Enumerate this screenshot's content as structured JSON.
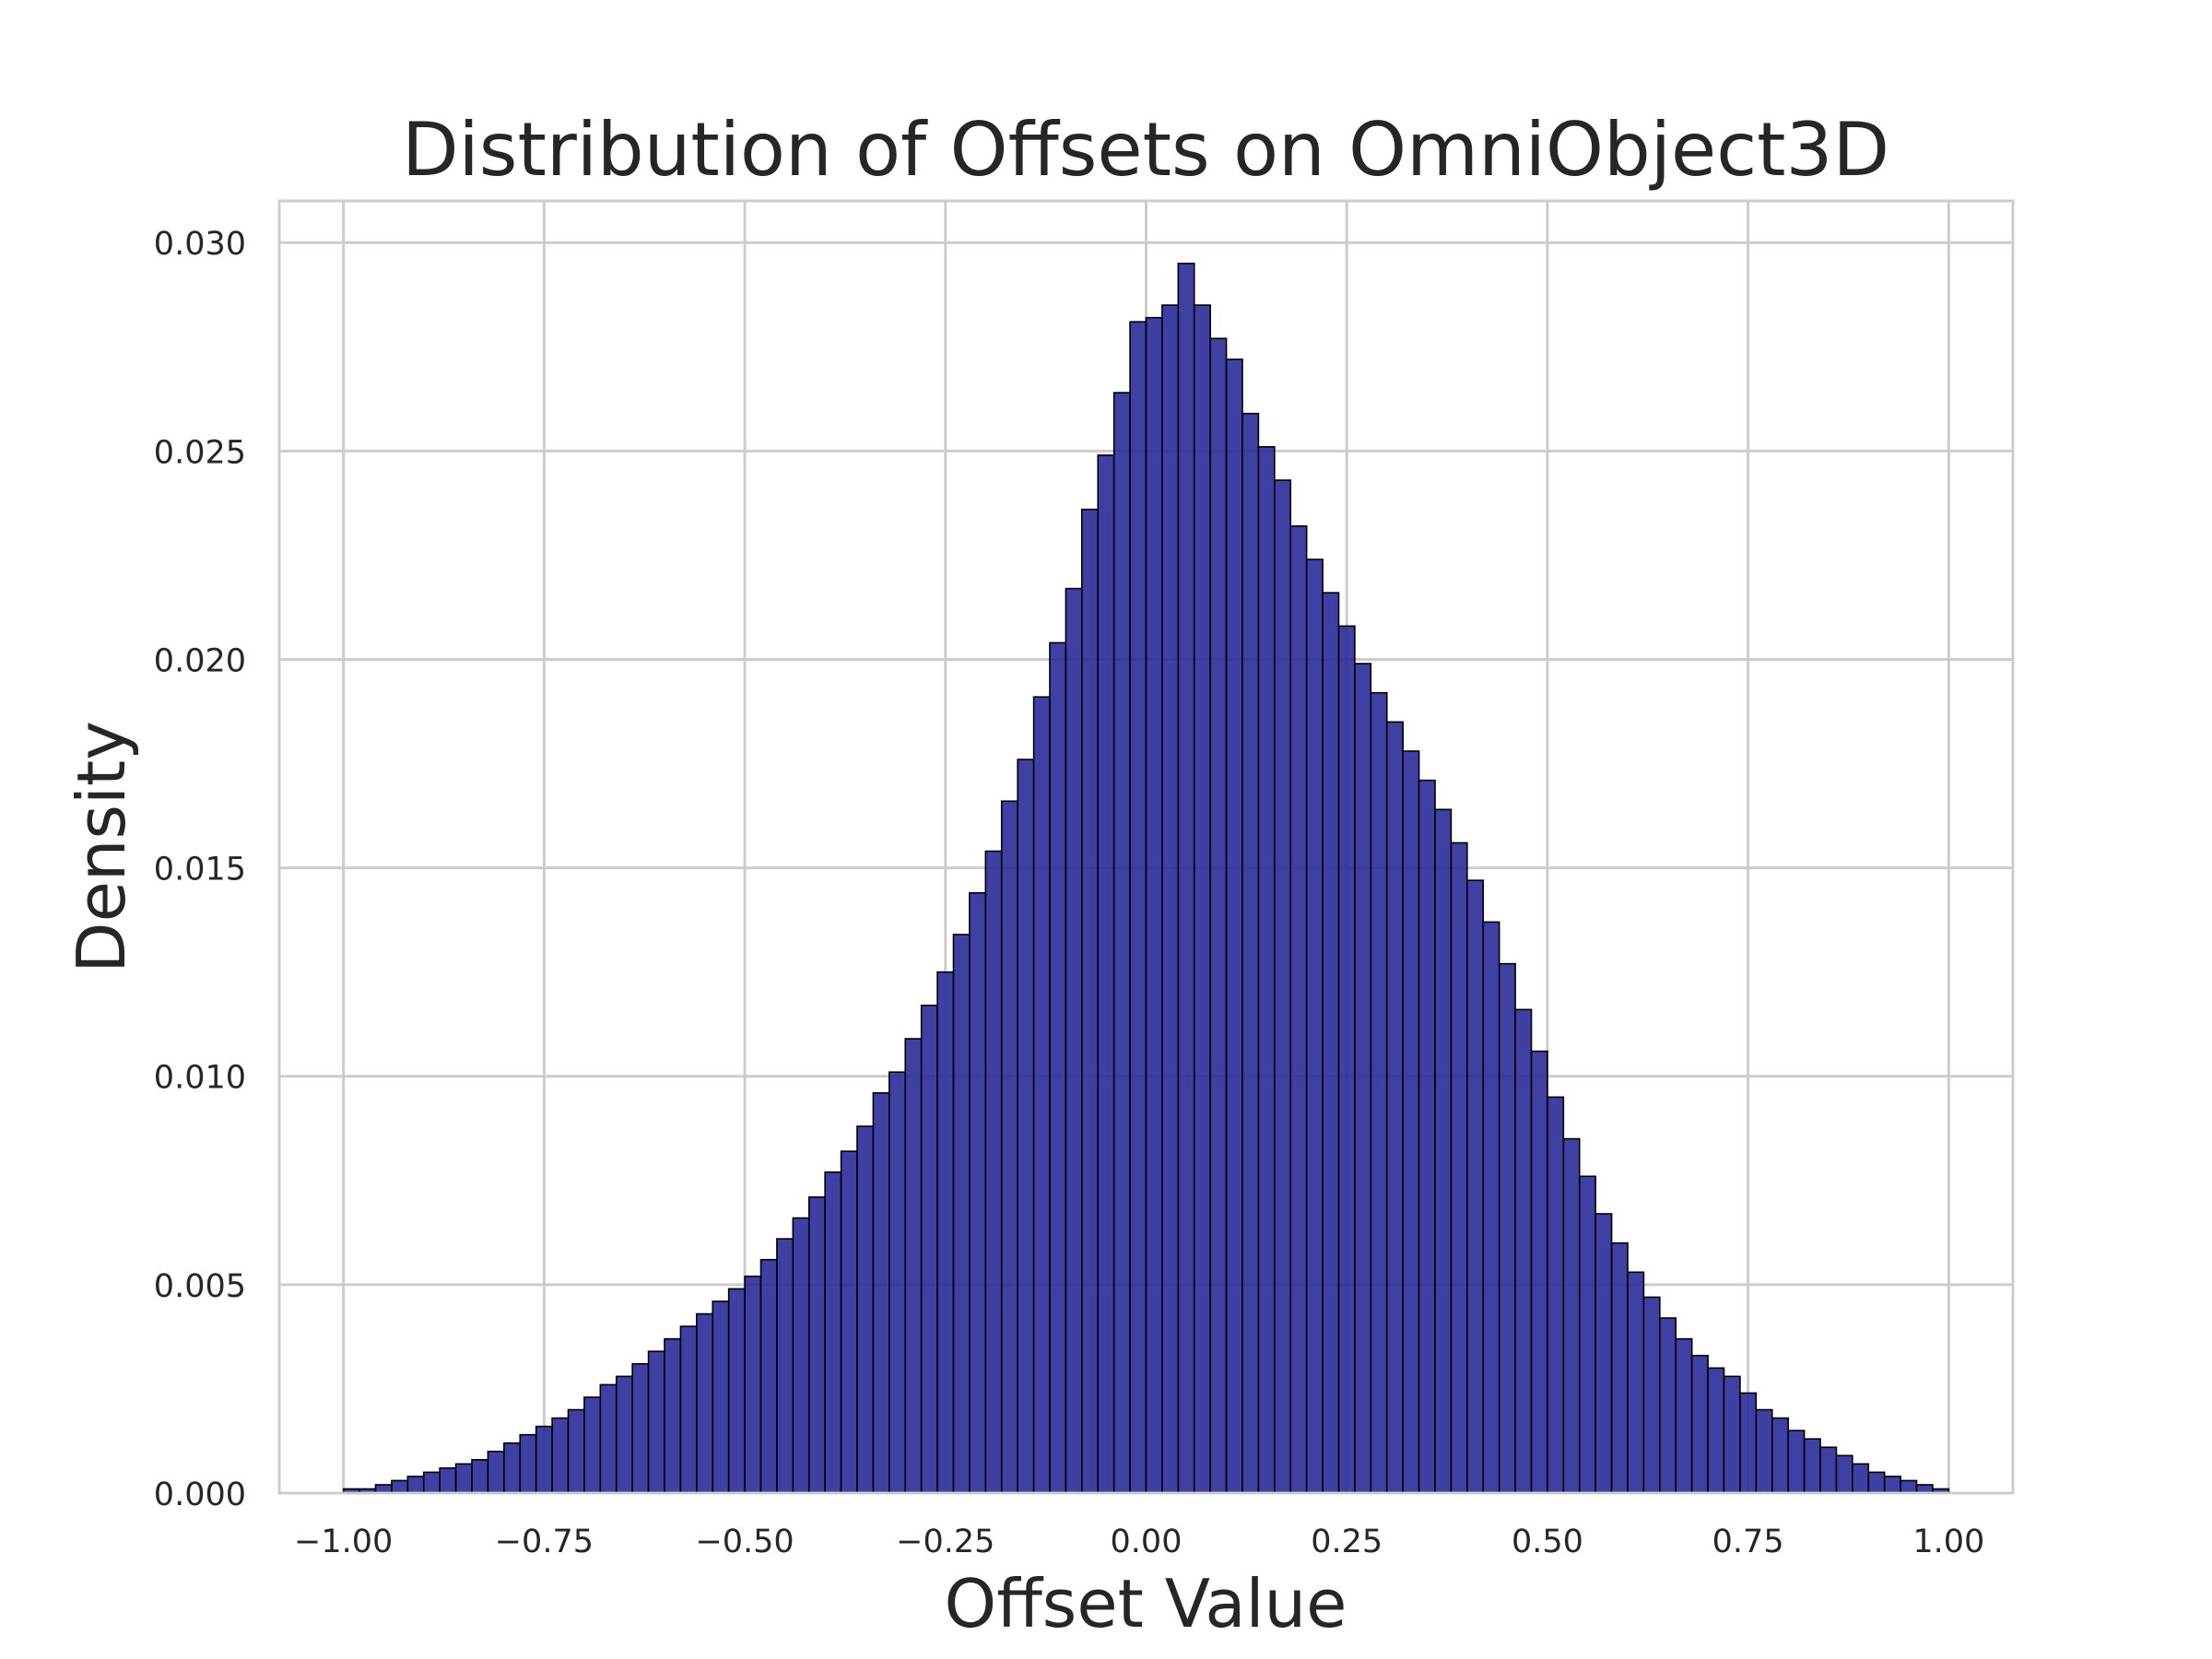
{
  "chart_data": {
    "type": "bar",
    "title": "Distribution of Offsets on OmniObject3D",
    "xlabel": "Offset Value",
    "ylabel": "Density",
    "xlim": [
      -1.08,
      1.08
    ],
    "ylim": [
      0,
      0.031
    ],
    "x_ticks": [
      -1.0,
      -0.75,
      -0.5,
      -0.25,
      0.0,
      0.25,
      0.5,
      0.75,
      1.0
    ],
    "x_tick_labels": [
      "−1.00",
      "−0.75",
      "−0.50",
      "−0.25",
      "0.00",
      "0.25",
      "0.50",
      "0.75",
      "1.00"
    ],
    "y_ticks": [
      0.0,
      0.005,
      0.01,
      0.015,
      0.02,
      0.025,
      0.03
    ],
    "y_tick_labels": [
      "0.000",
      "0.005",
      "0.010",
      "0.015",
      "0.020",
      "0.025",
      "0.030"
    ],
    "grid": true,
    "bar_color": "#2a2a9a",
    "bar_edge_color": "#000000",
    "bin_range": [
      -1.0,
      1.0
    ],
    "bins": 100,
    "values": [
      0.0001,
      0.0001,
      0.0002,
      0.0003,
      0.0004,
      0.0005,
      0.0006,
      0.0007,
      0.0008,
      0.001,
      0.0012,
      0.0014,
      0.0016,
      0.0018,
      0.002,
      0.0023,
      0.0026,
      0.0028,
      0.0031,
      0.0034,
      0.0037,
      0.004,
      0.0043,
      0.0046,
      0.0049,
      0.0052,
      0.0056,
      0.0061,
      0.0066,
      0.0071,
      0.0077,
      0.0082,
      0.0088,
      0.0096,
      0.0101,
      0.0109,
      0.0117,
      0.0125,
      0.0134,
      0.0144,
      0.0154,
      0.0166,
      0.0176,
      0.0191,
      0.0204,
      0.0217,
      0.0236,
      0.0249,
      0.0264,
      0.0281,
      0.0282,
      0.0285,
      0.0295,
      0.0285,
      0.0277,
      0.0272,
      0.0259,
      0.0251,
      0.0243,
      0.0232,
      0.0224,
      0.0216,
      0.0208,
      0.0199,
      0.0192,
      0.0185,
      0.0178,
      0.0171,
      0.0164,
      0.0156,
      0.0147,
      0.0137,
      0.0127,
      0.0116,
      0.0106,
      0.0095,
      0.0085,
      0.0076,
      0.0067,
      0.006,
      0.0053,
      0.0047,
      0.0042,
      0.0037,
      0.0033,
      0.003,
      0.0028,
      0.0024,
      0.002,
      0.0018,
      0.0015,
      0.0013,
      0.0011,
      0.0009,
      0.0007,
      0.0005,
      0.0004,
      0.0003,
      0.0002,
      0.0001
    ]
  }
}
